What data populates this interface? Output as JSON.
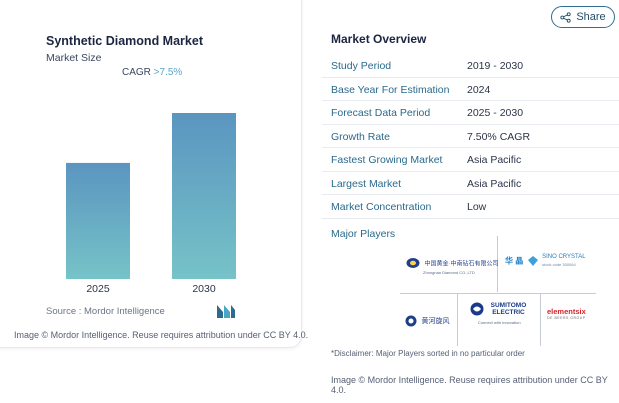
{
  "chart_data": {
    "type": "bar",
    "title": "Synthetic Diamond Market",
    "subtitle": "Market Size",
    "annotation": {
      "label": "CAGR",
      "value": ">7.5%"
    },
    "categories": [
      "2025",
      "2030"
    ],
    "values": [
      1.0,
      1.43
    ],
    "value_note": "relative bar heights; no values printed",
    "colors": [
      "#76c3c8",
      "#5b95c0"
    ],
    "grid": false,
    "legend": "none"
  },
  "chart": {
    "title": "Synthetic Diamond Market",
    "subtitle": "Market Size",
    "cagr_label": "CAGR ",
    "cagr_value": ">7.5%",
    "source": "Source :  Mordor Intelligence",
    "attribution": "Image © Mordor Intelligence. Reuse requires attribution under CC BY 4.0."
  },
  "header": {
    "share_label": "Share"
  },
  "overview": {
    "title": "Market Overview",
    "rows": [
      {
        "key": "Study Period",
        "value": "2019 - 2030"
      },
      {
        "key": "Base Year For Estimation",
        "value": "2024"
      },
      {
        "key": "Forecast Data Period",
        "value": "2025 - 2030"
      },
      {
        "key": "Growth Rate",
        "value": "7.50% CAGR"
      },
      {
        "key": "Fastest Growing Market",
        "value": "Asia Pacific"
      },
      {
        "key": "Largest Market",
        "value": "Asia Pacific"
      },
      {
        "key": "Market Concentration",
        "value": "Low"
      }
    ],
    "players_title": "Major Players",
    "players": [
      {
        "name": "中国黄金·中南钻石有限公司",
        "sub": "Zhongnan Diamond CO.,LTD"
      },
      {
        "name": "SINO CRYSTAL",
        "cn": "华 晶",
        "sub": "stock code  300064"
      },
      {
        "name": "黄河旋风"
      },
      {
        "name": "SUMITOMO ELECTRIC",
        "sub": "Connect with Innovation"
      },
      {
        "name": "elementsix",
        "sub": "DE BEERS GROUP"
      }
    ],
    "disclaimer": "*Disclaimer: Major Players sorted in no particular order",
    "attribution": "Image © Mordor Intelligence. Reuse requires attribution under CC BY 4.0."
  }
}
